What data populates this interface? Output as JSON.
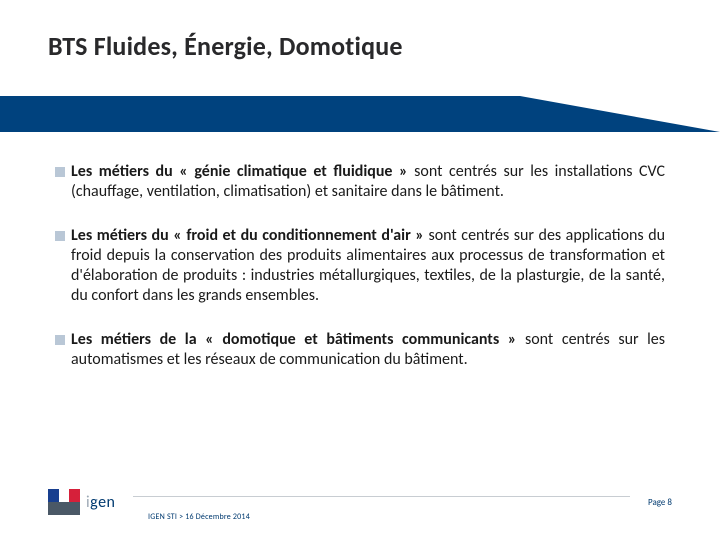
{
  "title": "BTS Fluides, Énergie, Domotique",
  "colors": {
    "band": "#00427e",
    "bullet": "#b9c7d6",
    "text": "#1a1a1a",
    "title": "#29292b",
    "footer_text": "#003a70",
    "divider": "#c8cdd2",
    "flag_blue": "#183f8f",
    "flag_white": "#ffffff",
    "flag_red": "#d6203a"
  },
  "bullets": [
    {
      "bold_lead": "Les métiers du « génie climatique et fluidique »",
      "rest": " sont centrés sur les installations CVC (chauffage, ventilation, climatisation) et sanitaire dans le bâtiment."
    },
    {
      "bold_lead": "Les métiers du « froid et du conditionnement d'air »",
      "rest": " sont centrés sur des applications du froid depuis la conservation des produits alimentaires aux processus de transformation et d'élaboration de produits : industries métallurgiques, textiles, de la plasturgie, de la santé, du confort dans les grands ensembles."
    },
    {
      "bold_lead": "Les métiers de la « domotique et bâtiments communicants »",
      "rest": " sont centrés sur les automatismes et les réseaux de communication du bâtiment."
    }
  ],
  "footer": {
    "brand_prefix": "i",
    "brand_main": "gen",
    "meta": "IGEN STI > 16 Décembre 2014",
    "page_label": "Page 8"
  }
}
